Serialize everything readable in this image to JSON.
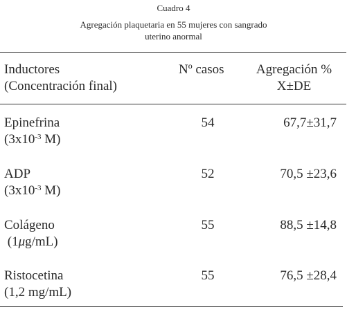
{
  "caption": {
    "number": "Cuadro 4",
    "title_line1": "Agregación plaquetaria en 55 mujeres con sangrado",
    "title_line2": "uterino anormal"
  },
  "table": {
    "headers": {
      "inductor_line1": "Inductores",
      "inductor_line2": "(Concentración final)",
      "casos": "Nº casos",
      "agregacion_line1": "Agregación %",
      "agregacion_line2": "X±DE"
    },
    "rows": [
      {
        "name": "Epinefrina",
        "conc_prefix": "(3x10",
        "conc_exp": "-3",
        "conc_suffix": " M)",
        "casos": "54",
        "agregacion": "67,7±31,7"
      },
      {
        "name": "ADP",
        "conc_prefix": "(3x10",
        "conc_exp": "-3",
        "conc_suffix": " M)",
        "casos": "52",
        "agregacion": "70,5 ±23,6"
      },
      {
        "name": "Colágeno",
        "conc_prefix": " (1",
        "conc_mu": "μ",
        "conc_suffix": "g/mL)",
        "casos": "55",
        "agregacion": "88,5 ±14,8"
      },
      {
        "name": "Ristocetina",
        "conc": "(1,2 mg/mL)",
        "casos": "55",
        "agregacion": "76,5 ±28,4"
      }
    ]
  }
}
